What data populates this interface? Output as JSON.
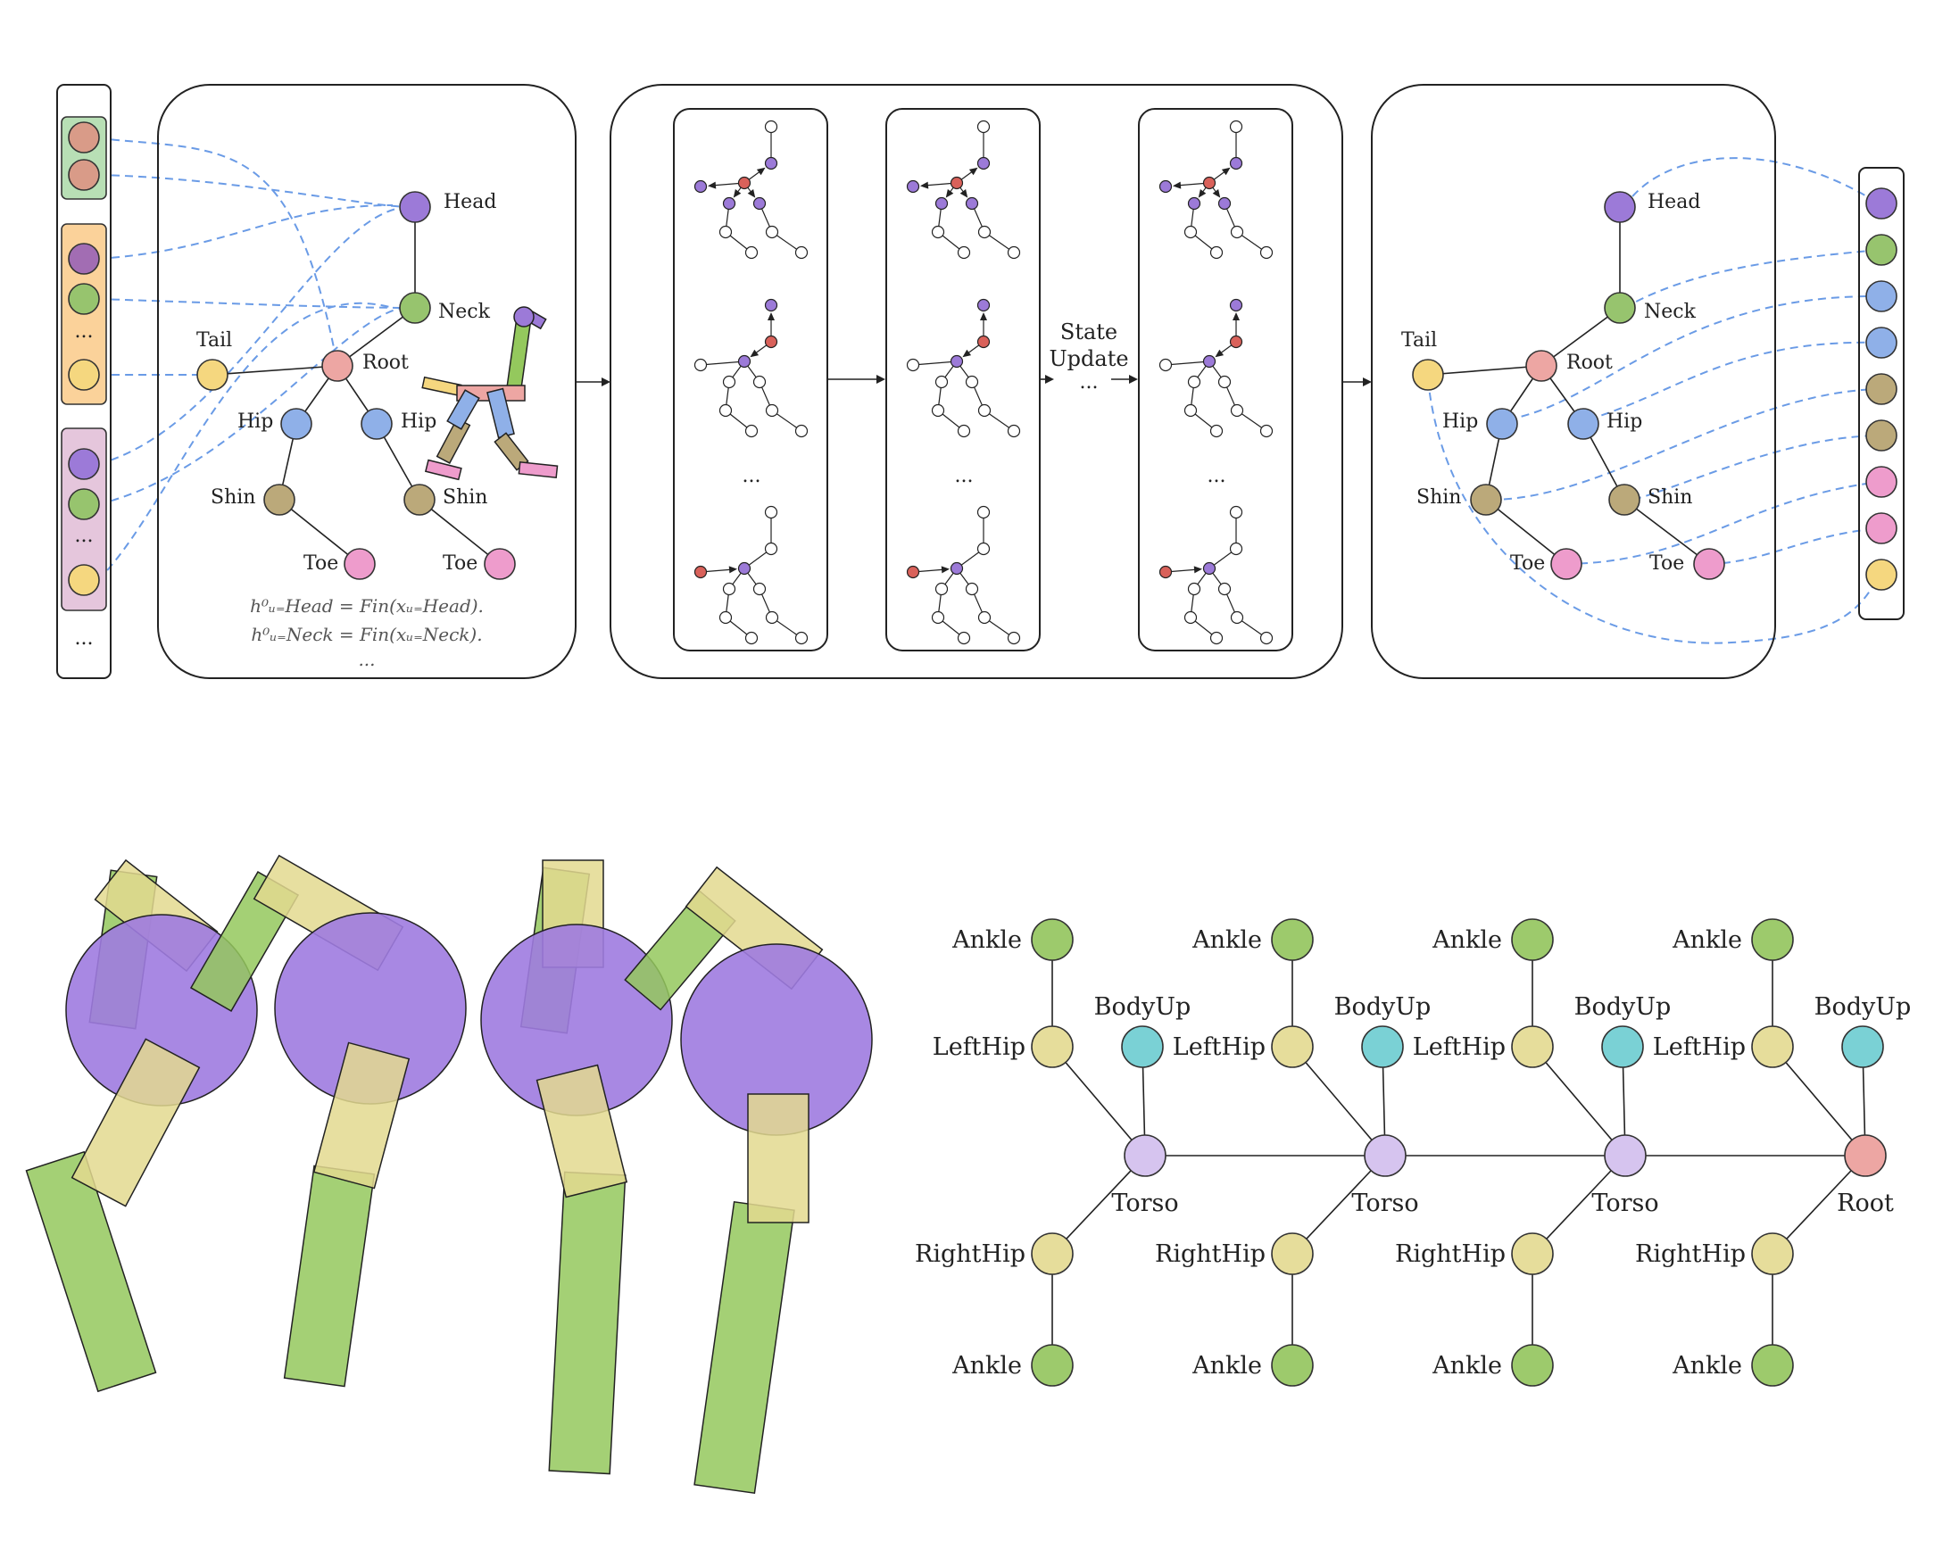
{
  "colors": {
    "head": "#9c7ad8",
    "neck": "#97c46e",
    "tail": "#f5d77f",
    "root": "#eda6a3",
    "hip": "#8fb0e8",
    "shin": "#bba97a",
    "toe": "#ee9ccc",
    "torso": "#d6c4ef",
    "bodyup": "#7ad1d5",
    "ankle": "#9dca6c",
    "lefthip": "#e6dd9b",
    "vec_group1": "#b8dfb5",
    "vec_group2": "#fbd29a",
    "vec_group3": "#e5c6dc",
    "vec_node1": "#d99b88",
    "vec_node2": "#a26db3",
    "msg_active": "#9c7ad8",
    "msg_root": "#d9615a",
    "body_purple": "#9e7be0",
    "body_green": "#94c85d",
    "body_tan": "#e3d98f"
  },
  "top": {
    "input_skeleton": {
      "labels": {
        "head": "Head",
        "neck": "Neck",
        "tail": "Tail",
        "root": "Root",
        "hip_left": "Hip",
        "hip_right": "Hip",
        "shin_left": "Shin",
        "shin_right": "Shin",
        "toe_left": "Toe",
        "toe_right": "Toe"
      },
      "formulas": [
        "h⁰ᵤ₌Head = Fin(xᵤ₌Head).",
        "h⁰ᵤ₌Neck = Fin(xᵤ₌Neck).",
        "..."
      ]
    },
    "left_vector": {
      "group1_dots": "",
      "group2_dots": "...",
      "group3_dots": "...",
      "bottom_dots": "..."
    },
    "message_passing": {
      "state_update_line1": "State",
      "state_update_line2": "Update",
      "state_update_dots": "...",
      "column_dots": "..."
    },
    "output_skeleton": {
      "labels": {
        "head": "Head",
        "neck": "Neck",
        "tail": "Tail",
        "root": "Root",
        "hip_left": "Hip",
        "hip_right": "Hip",
        "shin_left": "Shin",
        "shin_right": "Shin",
        "toe_left": "Toe",
        "toe_right": "Toe"
      }
    }
  },
  "bottom": {
    "graph": {
      "ankle": "Ankle",
      "lefthip": "LeftHip",
      "bodyup": "BodyUp",
      "righthip": "RightHip",
      "torso": "Torso",
      "root": "Root"
    }
  }
}
